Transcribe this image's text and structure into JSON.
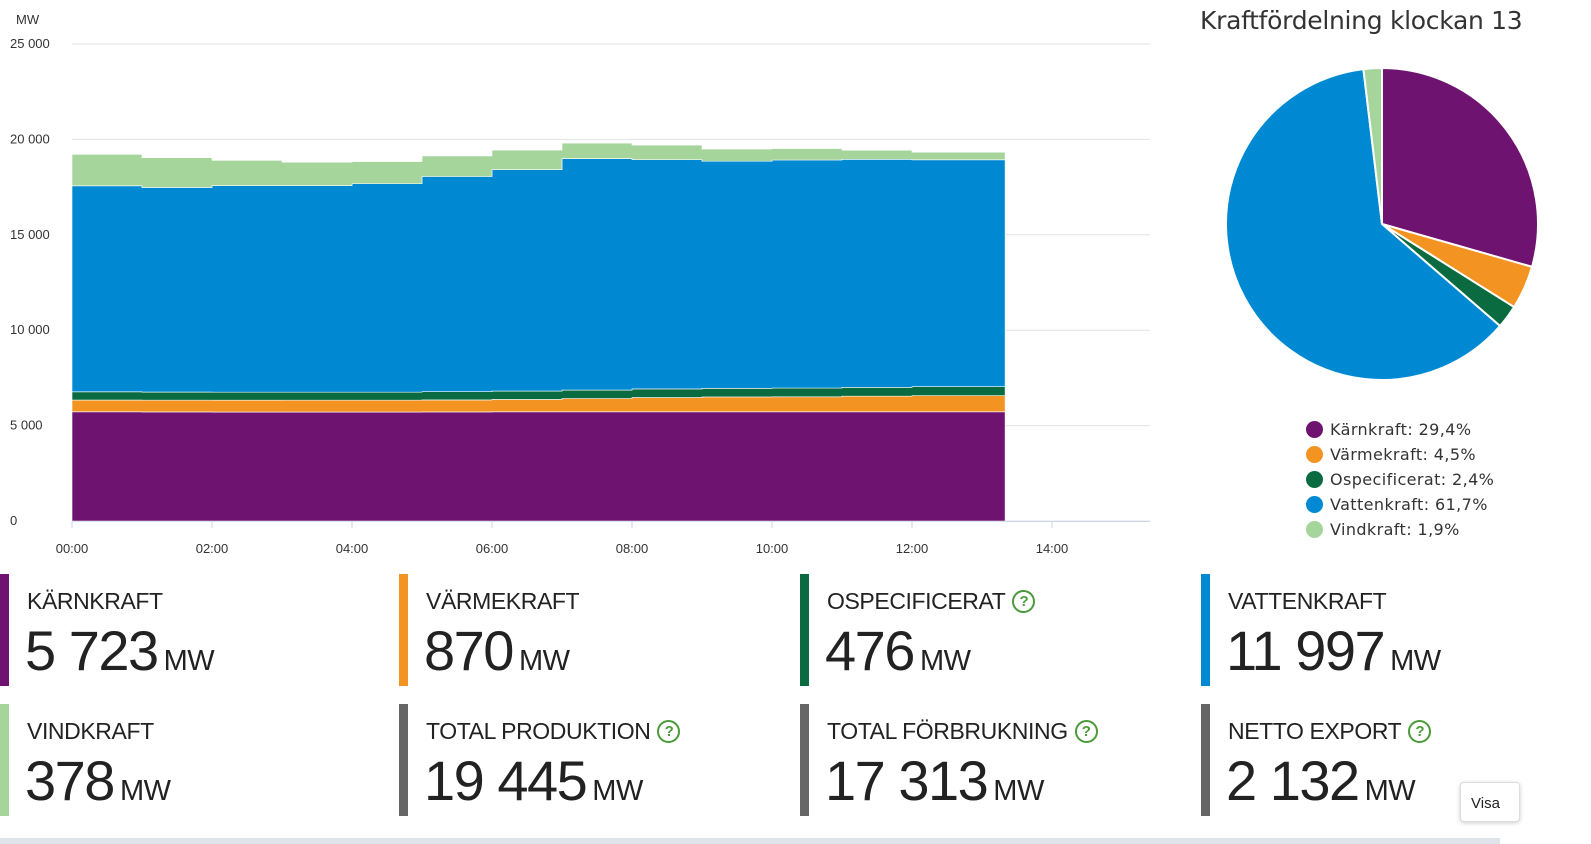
{
  "colors": {
    "karnkraft": "#6e1470",
    "varmekraft": "#f39322",
    "ospecificerat": "#0a6b40",
    "vattenkraft": "#0089d3",
    "vindkraft": "#a6d59c",
    "neutral": "#666666"
  },
  "chart_data": [
    {
      "type": "area",
      "stacked": true,
      "y_unit_label": "MW",
      "ylim": [
        0,
        25000
      ],
      "y_ticks": [
        "25 000",
        "20 000",
        "15 000",
        "10 000",
        "5 000",
        "0"
      ],
      "y_tick_values": [
        25000,
        20000,
        15000,
        10000,
        5000,
        0
      ],
      "x_ticks": [
        "00:00",
        "02:00",
        "04:00",
        "06:00",
        "08:00",
        "10:00",
        "12:00",
        "14:00"
      ],
      "x_tick_hours": [
        0,
        2,
        4,
        6,
        8,
        10,
        12,
        14
      ],
      "xlim_hours": [
        0,
        15.4
      ],
      "grid": true,
      "x": [
        "00:00",
        "01:00",
        "02:00",
        "03:00",
        "04:00",
        "05:00",
        "06:00",
        "07:00",
        "08:00",
        "09:00",
        "10:00",
        "11:00",
        "12:00",
        "13:20"
      ],
      "x_hours": [
        0,
        1,
        2,
        3,
        4,
        5,
        6,
        7,
        8,
        9,
        10,
        11,
        12,
        13.33
      ],
      "series": [
        {
          "key": "karnkraft",
          "values": [
            5720,
            5715,
            5710,
            5710,
            5710,
            5715,
            5720,
            5720,
            5720,
            5720,
            5720,
            5720,
            5720,
            5723
          ]
        },
        {
          "key": "varmekraft",
          "values": [
            620,
            620,
            620,
            625,
            625,
            630,
            650,
            700,
            750,
            780,
            790,
            820,
            850,
            870
          ]
        },
        {
          "key": "ospecificerat",
          "values": [
            430,
            425,
            425,
            420,
            420,
            430,
            440,
            445,
            450,
            455,
            460,
            465,
            470,
            476
          ]
        },
        {
          "key": "vattenkraft",
          "values": [
            10800,
            10720,
            10820,
            10820,
            10920,
            11280,
            11600,
            12130,
            12020,
            11900,
            11950,
            11950,
            11890,
            11997
          ]
        },
        {
          "key": "vindkraft",
          "values": [
            1650,
            1560,
            1330,
            1230,
            1160,
            1080,
            1030,
            810,
            760,
            640,
            600,
            480,
            400,
            378
          ]
        }
      ]
    },
    {
      "type": "pie",
      "title": "Kraftfördelning klockan 13",
      "slices": [
        {
          "key": "karnkraft",
          "label": "Kärnkraft: 29,4%",
          "value": 29.4
        },
        {
          "key": "varmekraft",
          "label": "Värmekraft: 4,5%",
          "value": 4.5
        },
        {
          "key": "ospecificerat",
          "label": "Ospecificerat: 2,4%",
          "value": 2.4
        },
        {
          "key": "vattenkraft",
          "label": "Vattenkraft: 61,7%",
          "value": 61.7
        },
        {
          "key": "vindkraft",
          "label": "Vindkraft: 1,9%",
          "value": 1.9
        }
      ]
    }
  ],
  "stats": [
    {
      "label": "KÄRNKRAFT",
      "value": "5 723",
      "unit": "MW",
      "help": false,
      "color_key": "karnkraft"
    },
    {
      "label": "VÄRMEKRAFT",
      "value": "870",
      "unit": "MW",
      "help": false,
      "color_key": "varmekraft"
    },
    {
      "label": "OSPECIFICERAT",
      "value": "476",
      "unit": "MW",
      "help": true,
      "color_key": "ospecificerat"
    },
    {
      "label": "VATTENKRAFT",
      "value": "11 997",
      "unit": "MW",
      "help": false,
      "color_key": "vattenkraft"
    },
    {
      "label": "VINDKRAFT",
      "value": "378",
      "unit": "MW",
      "help": false,
      "color_key": "vindkraft"
    },
    {
      "label": "TOTAL PRODUKTION",
      "value": "19 445",
      "unit": "MW",
      "help": true,
      "color_key": "neutral"
    },
    {
      "label": "TOTAL FÖRBRUKNING",
      "value": "17 313",
      "unit": "MW",
      "help": true,
      "color_key": "neutral"
    },
    {
      "label": "NETTO EXPORT",
      "value": "2 132",
      "unit": "MW",
      "help": true,
      "color_key": "neutral"
    }
  ],
  "help_icon_text": "?",
  "visa_button_label": "Visa"
}
